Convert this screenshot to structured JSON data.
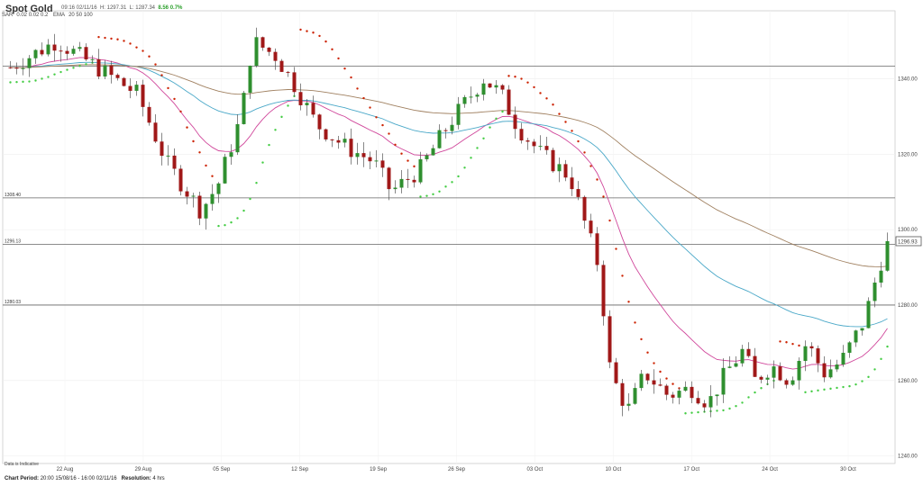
{
  "header": {
    "title": "Spot Gold",
    "time": "09:16 02/11/16",
    "high": "H: 1297.31",
    "low": "L: 1287.34",
    "change": "8.56 0.7%",
    "sar_label": "SAR",
    "sar_params": "0.02  0.02  0.2",
    "ema_label": "EMA",
    "ema_params": "20  50  100"
  },
  "footer": {
    "indicative": "Data is Indicative",
    "period_label": "Chart Period:",
    "period_value": "20:00 15/08/16 - 16:00 02/11/16",
    "resolution_label": "Resolution:",
    "resolution_value": "4 hrs"
  },
  "chart_data": {
    "type": "candlestick",
    "ylim": [
      1238,
      1358
    ],
    "y_ticks": [
      "1340.00",
      "1320.00",
      "1300.00",
      "1280.00",
      "1260.00",
      "1240.00"
    ],
    "x_ticks": [
      "22 Aug",
      "29 Aug",
      "05 Sep",
      "12 Sep",
      "19 Sep",
      "26 Sep",
      "03 Oct",
      "10 Oct",
      "17 Oct",
      "24 Oct",
      "30 Oct"
    ],
    "horizontal_lines": [
      {
        "value": 1343.3,
        "label": ""
      },
      {
        "value": 1308.4,
        "label": "1308.40"
      },
      {
        "value": 1296.1,
        "label": "1296.13"
      },
      {
        "value": 1280.0,
        "label": "1280.03"
      }
    ],
    "last_price": "1296.93",
    "colors": {
      "up": "#2f8f2f",
      "down": "#a01818",
      "ema20": "#d0479b",
      "ema50": "#4aa8c8",
      "ema100": "#a08060",
      "sar_down": "#cc2200",
      "sar_up": "#44cc44"
    },
    "price_path": [
      [
        0,
        1343
      ],
      [
        8,
        1350
      ],
      [
        16,
        1342
      ],
      [
        22,
        1336
      ],
      [
        27,
        1318
      ],
      [
        33,
        1305
      ],
      [
        36,
        1312
      ],
      [
        40,
        1330
      ],
      [
        42,
        1350
      ],
      [
        46,
        1346
      ],
      [
        49,
        1339
      ],
      [
        53,
        1328
      ],
      [
        58,
        1322
      ],
      [
        63,
        1318
      ],
      [
        66,
        1310
      ],
      [
        71,
        1316
      ],
      [
        76,
        1328
      ],
      [
        80,
        1336
      ],
      [
        82,
        1340
      ],
      [
        85,
        1336
      ],
      [
        88,
        1327
      ],
      [
        92,
        1320
      ],
      [
        97,
        1314
      ],
      [
        102,
        1290
      ],
      [
        104,
        1262
      ],
      [
        107,
        1252
      ],
      [
        110,
        1262
      ],
      [
        114,
        1256
      ],
      [
        118,
        1258
      ],
      [
        121,
        1254
      ],
      [
        124,
        1262
      ],
      [
        127,
        1268
      ],
      [
        129,
        1260
      ],
      [
        132,
        1264
      ],
      [
        135,
        1260
      ],
      [
        138,
        1270
      ],
      [
        141,
        1262
      ],
      [
        144,
        1265
      ],
      [
        148,
        1276
      ],
      [
        150,
        1287
      ],
      [
        152,
        1297
      ]
    ]
  }
}
